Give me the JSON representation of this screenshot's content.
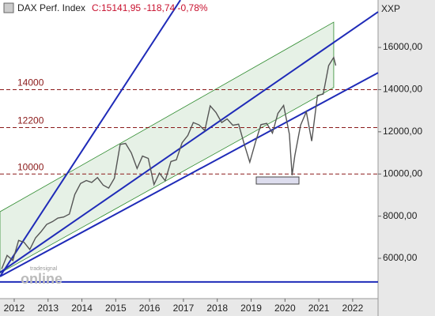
{
  "chart_data": {
    "type": "line",
    "title": "DAX Perf. Index",
    "subtitle": "C:15141,95 -118,74 -0,78%",
    "axis_label": "XXP",
    "watermark": [
      "tradesignal",
      "online"
    ],
    "x": [
      2011.63,
      2011.79,
      2011.96,
      2012.13,
      2012.29,
      2012.46,
      2012.63,
      2012.79,
      2012.96,
      2013.13,
      2013.29,
      2013.46,
      2013.63,
      2013.79,
      2013.96,
      2014.13,
      2014.29,
      2014.46,
      2014.63,
      2014.79,
      2014.96,
      2015.13,
      2015.29,
      2015.46,
      2015.63,
      2015.79,
      2015.96,
      2016.13,
      2016.29,
      2016.46,
      2016.63,
      2016.79,
      2016.96,
      2017.13,
      2017.29,
      2017.46,
      2017.63,
      2017.79,
      2017.96,
      2018.13,
      2018.29,
      2018.46,
      2018.63,
      2018.79,
      2018.96,
      2019.13,
      2019.29,
      2019.46,
      2019.63,
      2019.79,
      2019.96,
      2020.13,
      2020.21,
      2020.29,
      2020.46,
      2020.63,
      2020.79,
      2020.96,
      2021.13,
      2021.29,
      2021.44,
      2021.5
    ],
    "values": [
      5500,
      6140,
      5900,
      6850,
      6760,
      6420,
      6970,
      7260,
      7610,
      7740,
      7910,
      7960,
      8100,
      9030,
      9550,
      9690,
      9600,
      9830,
      9470,
      9330,
      9800,
      11400,
      11450,
      11000,
      10260,
      10850,
      10740,
      9500,
      10040,
      9680,
      10590,
      10670,
      11480,
      11830,
      12440,
      12330,
      12060,
      13230,
      12920,
      12440,
      12610,
      12310,
      12360,
      11450,
      10560,
      11520,
      12340,
      12400,
      11940,
      12870,
      13250,
      11890,
      9940,
      10860,
      12310,
      12950,
      11560,
      13720,
      13790,
      15140,
      15530,
      15142
    ],
    "color": "#555555",
    "channel": {
      "x": [
        2011.58,
        2021.44
      ],
      "upper": [
        8210,
        17200
      ],
      "lower": [
        5300,
        14100
      ],
      "color": "#2e8b2e"
    },
    "trendlines": [
      {
        "x": [
          2011.58,
          2016.91
        ],
        "y": [
          5139,
          18247
        ],
        "color": "#1f2bb8"
      },
      {
        "x": [
          2011.58,
          2022.75
        ],
        "y": [
          5330,
          17685
        ],
        "color": "#1f2bb8"
      },
      {
        "x": [
          2011.58,
          2022.75
        ],
        "y": [
          5139,
          14800
        ],
        "color": "#1f2bb8"
      },
      {
        "x": [
          2011.58,
          2022.75
        ],
        "y": [
          4880,
          4880
        ],
        "color": "#1f2bb8"
      }
    ],
    "levels": [
      14000,
      12200,
      10000
    ],
    "level_color": "#8b1a1a",
    "xlim": [
      2011.58,
      2022.75
    ],
    "ylim": [
      4090,
      18250
    ],
    "xticks": [
      2012,
      2013,
      2014,
      2015,
      2016,
      2017,
      2018,
      2019,
      2020,
      2021,
      2022
    ],
    "yticks": [
      {
        "value": 6000,
        "label": "6000,00"
      },
      {
        "value": 8000,
        "label": "8000,00"
      },
      {
        "value": 10000,
        "label": "10000,00"
      },
      {
        "value": 12000,
        "label": "12000,00"
      },
      {
        "value": 14000,
        "label": "14000,00"
      },
      {
        "value": 16000,
        "label": "16000,00"
      }
    ]
  }
}
